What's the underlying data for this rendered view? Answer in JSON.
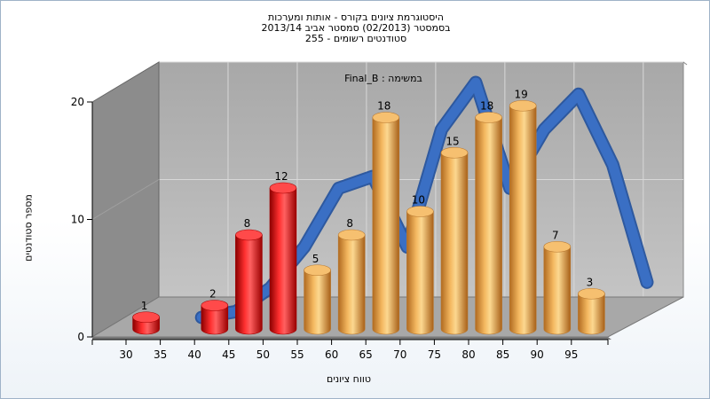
{
  "chart_data": {
    "type": "bar",
    "title_lines": [
      "היסטוגרמת ציונים בקורס - אותות ומערכות",
      "בסמסטר  (02/2013)  סמסטר אביב 2013/14",
      "סטודנטים רשומים - 255"
    ],
    "annotation": "Final_B : במשימה",
    "xlabel": "טווח ציונים",
    "ylabel": "מספר סטודנטים",
    "x_ticks": [
      "30",
      "35",
      "40",
      "45",
      "50",
      "55",
      "60",
      "65",
      "70",
      "75",
      "80",
      "85",
      "90",
      "95"
    ],
    "y_ticks": [
      "0",
      "10",
      "20"
    ],
    "ylim": [
      0,
      20
    ],
    "bars": [
      {
        "label": "1",
        "value": 1,
        "pos": 0.5,
        "color": "red"
      },
      {
        "label": "2",
        "value": 2,
        "pos": 1.5,
        "color": "red"
      },
      {
        "label": "8",
        "value": 8,
        "pos": 2.0,
        "color": "red"
      },
      {
        "label": "12",
        "value": 12,
        "pos": 2.5,
        "color": "red"
      },
      {
        "label": "5",
        "value": 5,
        "pos": 3.0,
        "color": "orange"
      },
      {
        "label": "8",
        "value": 8,
        "pos": 3.5,
        "color": "orange"
      },
      {
        "label": "18",
        "value": 18,
        "pos": 4.0,
        "color": "orange"
      },
      {
        "label": "10",
        "value": 10,
        "pos": 4.5,
        "color": "orange"
      },
      {
        "label": "15",
        "value": 15,
        "pos": 5.0,
        "color": "orange"
      },
      {
        "label": "18",
        "value": 18,
        "pos": 5.5,
        "color": "orange"
      },
      {
        "label": "19",
        "value": 19,
        "pos": 6.0,
        "color": "orange"
      },
      {
        "label": "7",
        "value": 7,
        "pos": 6.5,
        "color": "orange"
      },
      {
        "label": "3",
        "value": 3,
        "pos": 7.0,
        "color": "orange"
      }
    ],
    "trend_line": {
      "x": [
        1.0,
        1.5,
        2.0,
        2.5,
        3.0,
        3.5,
        4.0,
        4.5,
        5.0,
        5.5,
        6.0,
        6.5,
        7.0,
        7.5
      ],
      "y": [
        0,
        0.5,
        2.5,
        6,
        11,
        12,
        6,
        16,
        20,
        11,
        16,
        19,
        13,
        3
      ]
    },
    "colors": {
      "red": "#e01010",
      "orange": "#e8a040",
      "trend": "#3a6fc4",
      "wall": "#b4b4b4",
      "side_wall": "#8c8c8c",
      "floor": "#a8a8a8"
    }
  }
}
